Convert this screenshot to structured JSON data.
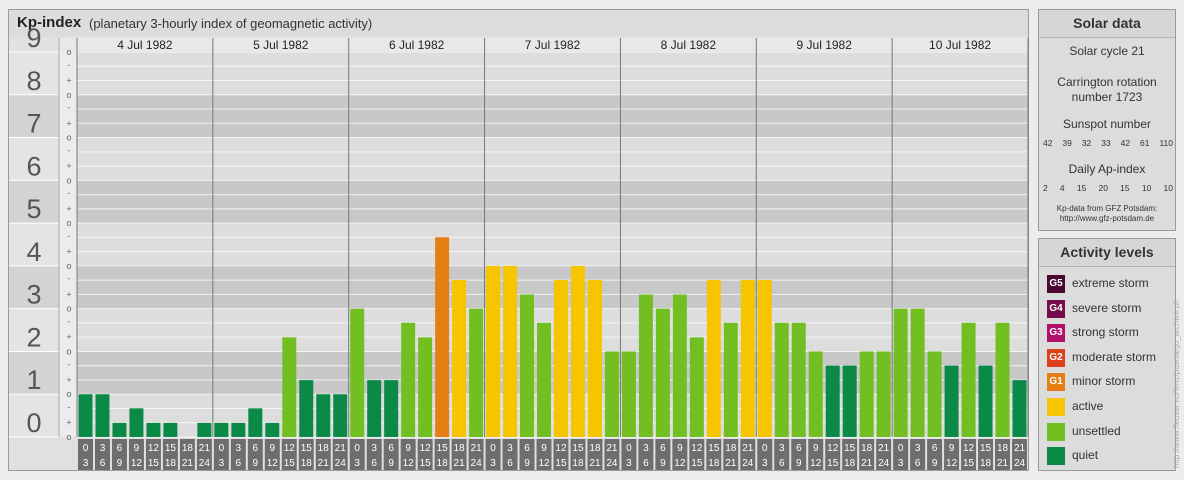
{
  "header": {
    "title": "Kp-index",
    "subtitle": "(planetary 3-hourly index of geomagnetic activity)"
  },
  "chart_data": {
    "type": "bar",
    "title": "Kp-index",
    "subtitle": "(planetary 3-hourly index of geomagnetic activity)",
    "days": [
      "4 Jul 1982",
      "5 Jul 1982",
      "6 Jul 1982",
      "7 Jul 1982",
      "8 Jul 1982",
      "9 Jul 1982",
      "10 Jul 1982"
    ],
    "interval_labels": [
      [
        "0",
        "3"
      ],
      [
        "3",
        "6"
      ],
      [
        "6",
        "9"
      ],
      [
        "9",
        "12"
      ],
      [
        "12",
        "15"
      ],
      [
        "15",
        "18"
      ],
      [
        "18",
        "21"
      ],
      [
        "21",
        "24"
      ]
    ],
    "y_ticks": [
      "0",
      "1",
      "2",
      "3",
      "4",
      "5",
      "6",
      "7",
      "8",
      "9"
    ],
    "sub_ticks": [
      "-",
      "o",
      "+"
    ],
    "ylim": [
      0,
      9
    ],
    "values": [
      1,
      1,
      0.33,
      0.67,
      0.33,
      0.33,
      0,
      0.33,
      0.33,
      0.33,
      0.67,
      0.33,
      2.33,
      1.33,
      1,
      1,
      3,
      1.33,
      1.33,
      2.67,
      2.33,
      4.67,
      3.67,
      3,
      4,
      4,
      3.33,
      2.67,
      3.67,
      4,
      3.67,
      2,
      2,
      3.33,
      3,
      3.33,
      2.33,
      3.67,
      2.67,
      3.67,
      3.67,
      2.67,
      2.67,
      2,
      1.67,
      1.67,
      2,
      2,
      3,
      3,
      2,
      1.67,
      2.67,
      1.67,
      2.67,
      1.33
    ],
    "bar_colors": {
      "quiet": "#0a8a46",
      "unsettled": "#72bf21",
      "active": "#f7c400",
      "minor_storm": "#e67e16",
      "moderate_storm": "#d9401b",
      "strong_storm": "#b0126a",
      "severe_storm": "#760c4b",
      "extreme_storm": "#4a0830"
    },
    "grid": true
  },
  "solar_data": {
    "title": "Solar data",
    "solar_cycle": "Solar cycle 21",
    "carrington_line1": "Carrington rotation",
    "carrington_line2": "number 1723",
    "sunspot_label": "Sunspot number",
    "sunspot_values": [
      "42",
      "39",
      "32",
      "33",
      "42",
      "61",
      "110"
    ],
    "ap_label": "Daily Ap-index",
    "ap_values": [
      "2",
      "4",
      "15",
      "20",
      "15",
      "10",
      "10"
    ],
    "source_line1": "Kp-data from GFZ Potsdam:",
    "source_line2": "http://www.gfz-potsdam.de"
  },
  "activity_levels": {
    "title": "Activity levels",
    "items": [
      {
        "code": "G5",
        "label": "extreme storm",
        "color": "#4a0830"
      },
      {
        "code": "G4",
        "label": "severe storm",
        "color": "#760c4b"
      },
      {
        "code": "G3",
        "label": "strong storm",
        "color": "#b0126a"
      },
      {
        "code": "G2",
        "label": "moderate storm",
        "color": "#d9401b"
      },
      {
        "code": "G1",
        "label": "minor storm",
        "color": "#e67e16"
      },
      {
        "code": "",
        "label": "active",
        "color": "#f7c400"
      },
      {
        "code": "",
        "label": "unsettled",
        "color": "#72bf21"
      },
      {
        "code": "",
        "label": "quiet",
        "color": "#0a8a46"
      }
    ]
  },
  "credit": "http://www.ffeuser.eu/fenz/puerta/go_archive.php"
}
